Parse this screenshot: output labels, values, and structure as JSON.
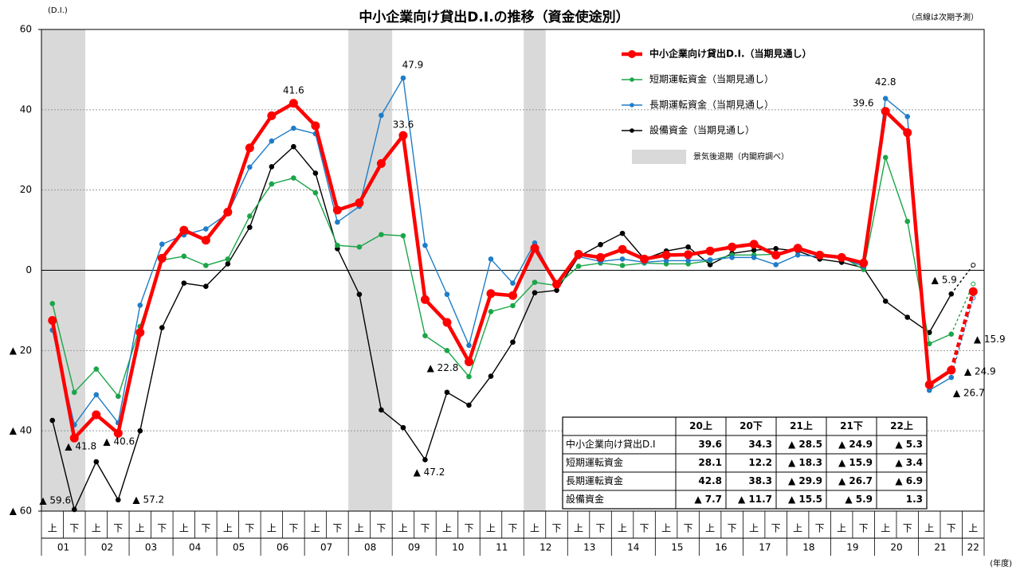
{
  "chart_data": {
    "type": "line",
    "title": "中小企業向け貸出D.I.の推移（資金使途別）",
    "y_unit_label": "(D.I.)",
    "note": "（点線は次期予測）",
    "x_axis_label": "(年度)",
    "categories": [
      "上",
      "下",
      "上",
      "下",
      "上",
      "下",
      "上",
      "下",
      "上",
      "下",
      "上",
      "下",
      "上",
      "下",
      "上",
      "下",
      "上",
      "下",
      "上",
      "下",
      "上",
      "下",
      "上",
      "下",
      "上",
      "下",
      "上",
      "下",
      "上",
      "下",
      "上",
      "下",
      "上",
      "下",
      "上",
      "下",
      "上",
      "下",
      "上",
      "下",
      "上",
      "下",
      "上"
    ],
    "year_labels": [
      "01",
      "02",
      "03",
      "04",
      "05",
      "06",
      "07",
      "08",
      "09",
      "10",
      "11",
      "12",
      "13",
      "14",
      "15",
      "16",
      "17",
      "18",
      "19",
      "20",
      "21",
      "22"
    ],
    "ylim": [
      -60,
      60
    ],
    "yticks": [
      {
        "value": -60,
        "label": "▲ 60"
      },
      {
        "value": -40,
        "label": "▲ 40"
      },
      {
        "value": -20,
        "label": "▲ 20"
      },
      0,
      20,
      40,
      60
    ],
    "grid": true,
    "recession_label": "景気後退期（内閣府調べ）",
    "recession_spans": [
      [
        0,
        1
      ],
      [
        14,
        15
      ],
      [
        22,
        22
      ]
    ],
    "last_point_forecast": true,
    "series": [
      {
        "name": "中小企業向け貸出D.I.（当期見通し）",
        "color": "#ff0000",
        "values": [
          -12.5,
          -41.8,
          -36,
          -40.6,
          -15.5,
          3,
          10,
          7.5,
          14.5,
          30.5,
          38.5,
          41.6,
          36,
          15,
          16.8,
          26.6,
          33.6,
          -7.3,
          -13,
          -22.8,
          -5.8,
          -6.3,
          5.5,
          -3.5,
          4,
          3.2,
          5.2,
          2.8,
          3.8,
          3.9,
          4.8,
          5.8,
          6.5,
          3.8,
          5.5,
          3.8,
          3.2,
          1.8,
          39.6,
          34.3,
          -28.5,
          -24.9,
          -5.3
        ],
        "value_labels": [
          null,
          "▲ 41.8",
          null,
          "▲ 40.6",
          null,
          null,
          null,
          null,
          null,
          null,
          null,
          "41.6",
          null,
          null,
          null,
          null,
          "33.6",
          null,
          null,
          "▲ 22.8",
          null,
          null,
          null,
          null,
          null,
          null,
          null,
          null,
          null,
          null,
          null,
          null,
          null,
          null,
          null,
          null,
          null,
          null,
          "39.6",
          null,
          null,
          "▲ 24.9",
          null
        ]
      },
      {
        "name": "短期運転資金（当期見通し）",
        "color": "#1ba548",
        "values": [
          -8.3,
          -30.4,
          -24.6,
          -31.4,
          -14,
          2.5,
          3.5,
          1.2,
          2.8,
          13.5,
          21.5,
          23,
          19.3,
          6.2,
          5.8,
          8.9,
          8.6,
          -16.3,
          -20,
          -26.5,
          -10.3,
          -8.8,
          -3,
          -3.8,
          1,
          1.8,
          1.2,
          1.8,
          1.6,
          1.6,
          2.4,
          3.8,
          3.8,
          4,
          5.6,
          4,
          3.4,
          0.2,
          28.1,
          12.2,
          -18.3,
          -15.9,
          -3.4
        ],
        "value_labels": [
          null,
          null,
          null,
          null,
          null,
          null,
          null,
          null,
          null,
          null,
          null,
          null,
          null,
          null,
          null,
          null,
          null,
          null,
          null,
          null,
          null,
          null,
          null,
          null,
          null,
          null,
          null,
          null,
          null,
          null,
          null,
          null,
          null,
          null,
          null,
          null,
          null,
          null,
          null,
          null,
          null,
          "▲ 15.9",
          null
        ]
      },
      {
        "name": "長期運転資金（当期見通し）",
        "color": "#1f7dc8",
        "values": [
          -14.9,
          -38.5,
          -31,
          -38,
          -8.7,
          6.5,
          8.8,
          10.3,
          14.2,
          25.7,
          32.2,
          35.4,
          34,
          12,
          15.9,
          38.6,
          47.9,
          6.2,
          -6,
          -18.7,
          2.8,
          -3.2,
          6.8,
          -3.6,
          3.4,
          2.2,
          2.8,
          2,
          2.4,
          2.4,
          2.6,
          3.2,
          3.2,
          1.4,
          3.8,
          3.4,
          3,
          1,
          42.8,
          38.3,
          -29.9,
          -26.7,
          -6.9
        ],
        "value_labels": [
          null,
          null,
          null,
          null,
          null,
          null,
          null,
          null,
          null,
          null,
          null,
          null,
          null,
          null,
          null,
          null,
          "47.9",
          null,
          null,
          null,
          null,
          null,
          null,
          null,
          null,
          null,
          null,
          null,
          null,
          null,
          null,
          null,
          null,
          null,
          null,
          null,
          null,
          null,
          "42.8",
          null,
          null,
          "▲ 26.7",
          null
        ]
      },
      {
        "name": "設備資金（当期見通し）",
        "color": "#000000",
        "values": [
          -37.4,
          -59.6,
          -47.7,
          -57.2,
          -40,
          -14.3,
          -3.2,
          -4,
          1.6,
          10.7,
          25.8,
          30.8,
          24.2,
          5.4,
          -6,
          -34.8,
          -39.2,
          -47.2,
          -30.4,
          -33.6,
          -26.4,
          -17.9,
          -5.6,
          -5,
          3.4,
          6.4,
          9.2,
          2.8,
          4.8,
          5.8,
          1.4,
          4.2,
          5,
          5.4,
          4.8,
          2.8,
          2,
          0.6,
          -7.7,
          -11.7,
          -15.5,
          -5.9,
          1.3
        ],
        "value_labels": [
          null,
          "▲ 59.6",
          null,
          "▲ 57.2",
          null,
          null,
          null,
          null,
          null,
          null,
          null,
          null,
          null,
          null,
          null,
          null,
          null,
          "▲ 47.2",
          null,
          null,
          null,
          null,
          null,
          null,
          null,
          null,
          null,
          null,
          null,
          null,
          null,
          null,
          null,
          null,
          null,
          null,
          null,
          null,
          null,
          null,
          null,
          "▲ 5.9",
          null
        ]
      }
    ],
    "table": {
      "columns": [
        "20上",
        "20下",
        "21上",
        "21下",
        "22上"
      ],
      "rows": [
        {
          "name": "中小企業向け貸出D.I",
          "cells": [
            "39.6",
            "34.3",
            "▲ 28.5",
            "▲ 24.9",
            "▲ 5.3"
          ]
        },
        {
          "name": "短期運転資金",
          "cells": [
            "28.1",
            "12.2",
            "▲ 18.3",
            "▲ 15.9",
            "▲ 3.4"
          ]
        },
        {
          "name": "長期運転資金",
          "cells": [
            "42.8",
            "38.3",
            "▲ 29.9",
            "▲ 26.7",
            "▲ 6.9"
          ]
        },
        {
          "name": "設備資金",
          "cells": [
            "▲ 7.7",
            "▲ 11.7",
            "▲ 15.5",
            "▲ 5.9",
            "1.3"
          ]
        }
      ]
    }
  }
}
